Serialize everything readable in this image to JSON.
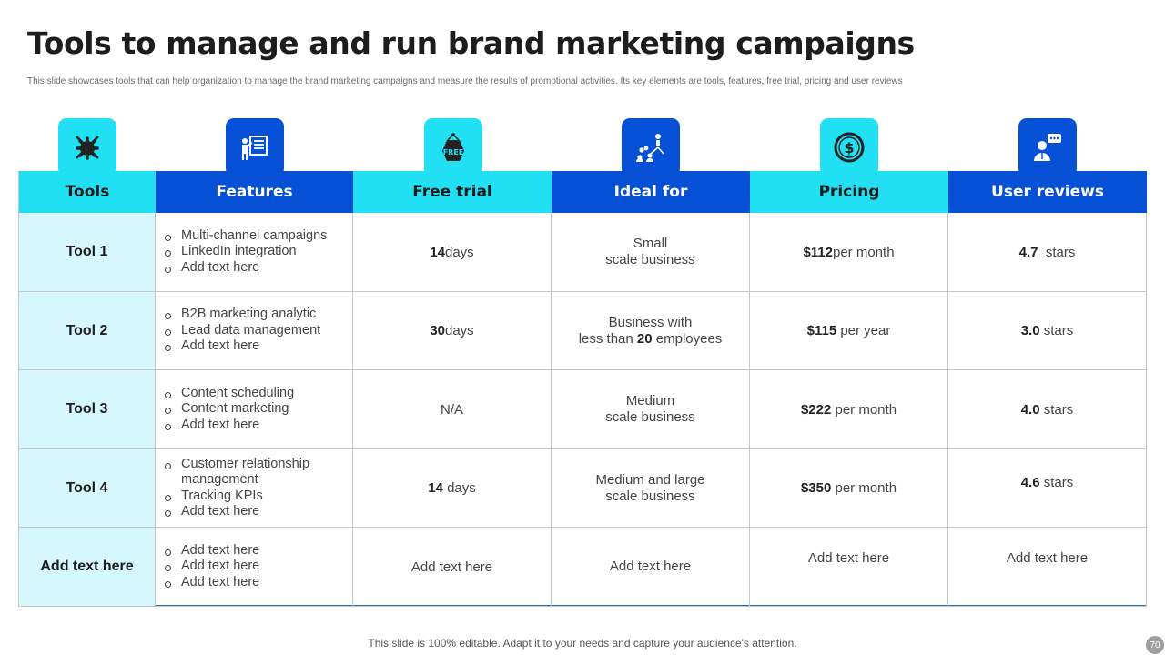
{
  "title": "Tools to manage and run brand marketing campaigns",
  "subtitle": "This slide showcases tools that can help organization to manage the brand marketing campaigns and measure the results of promotional activities. Its key elements are tools, features, free trial, pricing and user reviews",
  "headers": [
    "Tools",
    "Features",
    "Free trial",
    "Ideal for",
    "Pricing",
    "User reviews"
  ],
  "header_icons": [
    "gear-wrench-icon",
    "presentation-icon",
    "free-tag-icon",
    "team-network-icon",
    "dollar-coin-icon",
    "user-review-icon"
  ],
  "colors": {
    "cyan": "#22e0f3",
    "blue": "#0650d6",
    "tool_bg": "#d6f7fd"
  },
  "rows": [
    {
      "tool": "Tool 1",
      "features": [
        "Multi-channel campaigns",
        "LinkedIn integration",
        "Add text here"
      ],
      "trial_num": "14",
      "trial_text": " days",
      "ideal_line1": "Small",
      "ideal_pre": "scale business",
      "ideal_num": "",
      "ideal_post": "",
      "price_num": "$112",
      "price_text": " per month",
      "review_num": "4.7",
      "review_text": "  stars"
    },
    {
      "tool": "Tool 2",
      "features": [
        "B2B marketing analytic",
        "Lead data management",
        "Add text here"
      ],
      "trial_num": "30",
      "trial_text": " days",
      "ideal_line1": "Business with",
      "ideal_pre": "less than ",
      "ideal_num": "20",
      "ideal_post": " employees",
      "price_num": "$115",
      "price_text": " per year",
      "review_num": "3.0",
      "review_text": " stars"
    },
    {
      "tool": "Tool 3",
      "features": [
        "Content scheduling",
        "Content marketing",
        "Add text here"
      ],
      "trial_num": "",
      "trial_text": "N/A",
      "ideal_line1": "Medium",
      "ideal_pre": "scale business",
      "ideal_num": "",
      "ideal_post": "",
      "price_num": "$222",
      "price_text": " per month",
      "review_num": "4.0",
      "review_text": " stars"
    },
    {
      "tool": "Tool 4",
      "features": [
        "Customer relationship management",
        "Tracking KPIs",
        "Add text here"
      ],
      "trial_num": "14",
      "trial_text": " days",
      "ideal_line1": "Medium and large",
      "ideal_pre": "scale business",
      "ideal_num": "",
      "ideal_post": "",
      "price_num": "$350",
      "price_text": " per month",
      "review_num": "4.6",
      "review_text": " stars"
    },
    {
      "tool": "Add text here",
      "features": [
        "Add text here",
        "Add text here",
        "Add text here"
      ],
      "trial_num": "",
      "trial_text": "Add text here",
      "ideal_line1": "Add text here",
      "ideal_pre": "",
      "ideal_num": "",
      "ideal_post": "",
      "price_num": "",
      "price_text": "Add text here",
      "review_num": "",
      "review_text": "Add text here"
    }
  ],
  "footer": "This slide is 100% editable. Adapt it to your needs and capture your audience's attention.",
  "page_number": "70"
}
